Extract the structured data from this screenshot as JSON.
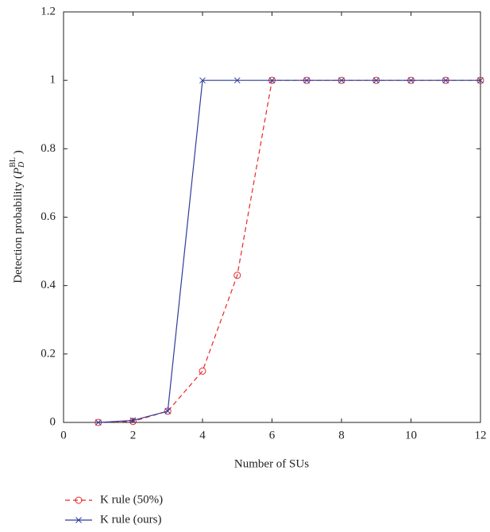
{
  "chart_data": {
    "type": "line",
    "xlabel": "Number of SUs",
    "ylabel": {
      "text": "Detection probability (",
      "symbol": "P",
      "sub": "D",
      "sup": "BL",
      "close": " )"
    },
    "x": [
      1,
      2,
      3,
      4,
      5,
      6,
      7,
      8,
      9,
      10,
      11,
      12
    ],
    "series": [
      {
        "name": "K rule (50%)",
        "color": "#e8262b",
        "dash": true,
        "marker": "circle",
        "values": [
          0,
          0.003,
          0.033,
          0.15,
          0.43,
          1,
          1,
          1,
          1,
          1,
          1,
          1
        ]
      },
      {
        "name": "K rule (ours)",
        "color": "#2e3c9c",
        "dash": false,
        "marker": "x",
        "values": [
          0,
          0.006,
          0.033,
          1,
          1,
          1,
          1,
          1,
          1,
          1,
          1,
          1
        ]
      }
    ],
    "xlim": [
      0,
      12
    ],
    "xticks": [
      0,
      2,
      4,
      6,
      8,
      10,
      12
    ],
    "ylim": [
      0,
      1.2
    ],
    "yticks": [
      0,
      0.2,
      0.4,
      0.6,
      0.8,
      1,
      1.2
    ],
    "grid": false,
    "legend": "below"
  }
}
